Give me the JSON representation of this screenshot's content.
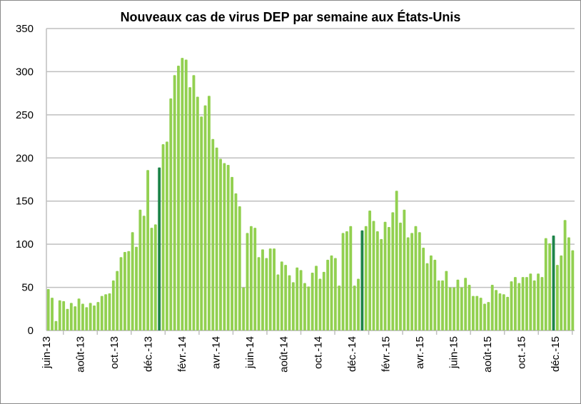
{
  "chart_data": {
    "type": "bar",
    "title": "Nouveaux cas de virus DEP par semaine aux États-Unis",
    "xlabel": "",
    "ylabel": "",
    "ylim": [
      0,
      350
    ],
    "yticks": [
      "0",
      "50",
      "100",
      "150",
      "200",
      "250",
      "300",
      "350"
    ],
    "xtick_labels": [
      "juin-13",
      "août-13",
      "oct.-13",
      "déc.-13",
      "févr.-14",
      "avr.-14",
      "juin-14",
      "août-14",
      "oct.-14",
      "déc.-14",
      "févr.-15",
      "avr.-15",
      "juin-15",
      "août-15",
      "oct.-15",
      "déc.-15"
    ],
    "grid": true,
    "colors": {
      "bar": "#92d050",
      "highlight": "#1e8449",
      "grid": "#bfbfbf"
    },
    "highlight_indices": [
      29,
      82,
      132
    ],
    "values": [
      48,
      38,
      11,
      35,
      34,
      25,
      32,
      28,
      37,
      31,
      27,
      32,
      29,
      33,
      40,
      42,
      43,
      58,
      69,
      85,
      91,
      92,
      114,
      97,
      140,
      133,
      186,
      119,
      123,
      189,
      216,
      219,
      269,
      296,
      307,
      316,
      314,
      282,
      296,
      271,
      248,
      261,
      272,
      222,
      212,
      199,
      194,
      192,
      178,
      159,
      144,
      50,
      113,
      121,
      119,
      85,
      94,
      84,
      95,
      95,
      65,
      80,
      76,
      64,
      56,
      73,
      70,
      55,
      51,
      67,
      75,
      60,
      68,
      82,
      87,
      84,
      52,
      113,
      115,
      121,
      52,
      60,
      116,
      121,
      139,
      127,
      115,
      106,
      126,
      120,
      137,
      162,
      125,
      140,
      108,
      113,
      121,
      114,
      96,
      78,
      87,
      82,
      58,
      58,
      69,
      50,
      50,
      59,
      50,
      61,
      53,
      40,
      40,
      38,
      31,
      33,
      53,
      47,
      43,
      42,
      39,
      57,
      62,
      55,
      62,
      62,
      66,
      58,
      66,
      62,
      107,
      101,
      110,
      76,
      87,
      128,
      108,
      93
    ]
  }
}
